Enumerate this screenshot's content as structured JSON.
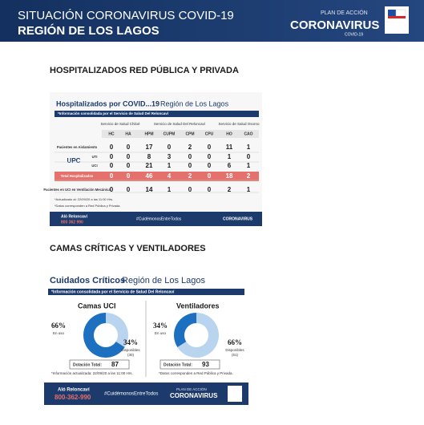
{
  "header": {
    "title_line1": "SITUACIÓN CORONAVIRUS COVID-19",
    "title_line2": "REGIÓN DE LOS LAGOS",
    "logo_small": "PLAN DE ACCIÓN",
    "logo_big": "CORONAVIRUS",
    "logo_sub": "COVID-19"
  },
  "section1": {
    "heading": "HOSPITALIZADOS RED PÚBLICA Y PRIVADA"
  },
  "hosp": {
    "title_bold": "Hospitalizados por COVID...19",
    "title_rest": "Región de Los Lagos",
    "info": "*Información consolidada por el Servicio de Salud Del Reloncaví",
    "services": [
      "Servicio de Salud Chiloé",
      "Servicio de Salud Del Reloncaví",
      "Servicio de Salud Osorno"
    ],
    "columns": [
      "HC",
      "HA",
      "HPM",
      "CUPM",
      "CPM",
      "CPU",
      "HO",
      "CAO"
    ],
    "upc": "UPC",
    "rows": [
      {
        "label": "Pacientes en Aislamiento",
        "values": [
          0,
          0,
          17,
          0,
          2,
          0,
          11,
          1
        ]
      },
      {
        "label": "UTI",
        "values": [
          0,
          0,
          8,
          3,
          0,
          0,
          1,
          0
        ]
      },
      {
        "label": "UCI",
        "values": [
          0,
          0,
          21,
          1,
          0,
          0,
          6,
          1
        ]
      },
      {
        "label": "Total Hospitalizados",
        "values": [
          0,
          0,
          46,
          4,
          2,
          0,
          18,
          2
        ]
      },
      {
        "label": "Pacientes en UCI en Ventilación Mecánica",
        "values": [
          0,
          0,
          14,
          1,
          0,
          0,
          2,
          1
        ]
      }
    ],
    "note1": "*Actualizado al: 22/09/20 a las 11:00 Hrs.",
    "note2": "*Datos corresponden a Red Pública y Privada.",
    "alo": "Aló Reloncaví",
    "phone": "800 362 990",
    "hashtag": "#CuidémonosEntreTodos",
    "logo_big": "CORONAVIRUS"
  },
  "section2": {
    "heading": "CAMAS CRÍTICAS Y VENTILADORES"
  },
  "critical": {
    "title_bold": "Cuidados Críticos",
    "title_rest": "Región de Los Lagos",
    "info": "*Información consolidada por el Servicio de Salud Del Reloncaví",
    "panels": [
      {
        "name": "Camas UCI",
        "used": {
          "value": 66,
          "label": "66%"
        },
        "used_label": "En uso",
        "free": {
          "value": 34,
          "label": "34%"
        },
        "free_label": "Disponibles",
        "free_count": "(30)",
        "total_label": "Dotación Total:",
        "total": 87
      },
      {
        "name": "Ventiladores",
        "used": {
          "value": 34,
          "label": "34%"
        },
        "used_label": "En uso",
        "free": {
          "value": 66,
          "label": "66%"
        },
        "free_label": "Disponibles",
        "free_count": "(61)",
        "total_label": "Dotación Total:",
        "total": 93
      }
    ],
    "note1": "*Información actualizada: 22/09/20 a las 11:00 Hrs.",
    "note2": "*Datos corresponden a Red Pública y Privada.",
    "alo": "Aló Reloncaví",
    "phone": "800-362-990",
    "hashtag": "#CuidémonosEntreTodos",
    "logo_small": "PLAN DE ACCIÓN",
    "logo_big": "CORONAVIRUS"
  }
}
